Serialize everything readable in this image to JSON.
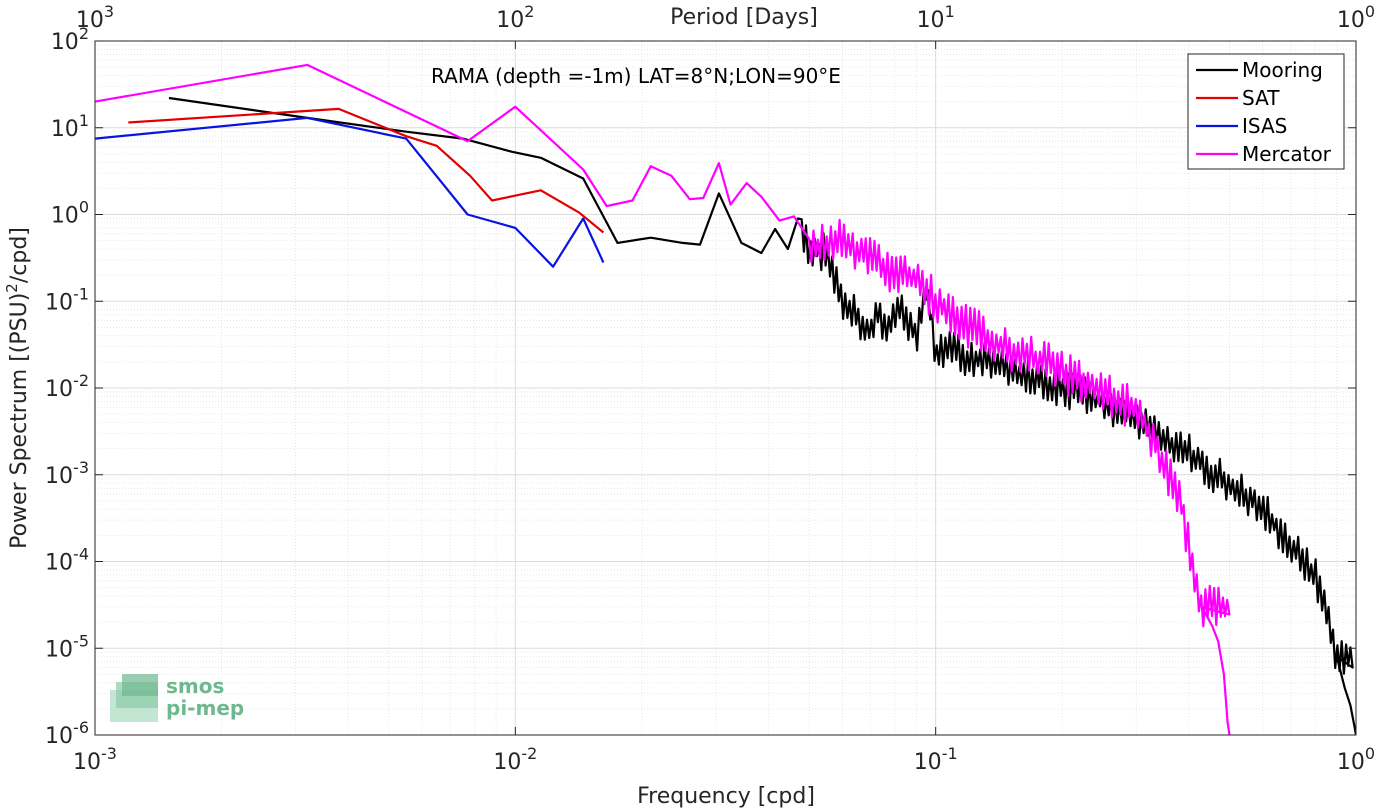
{
  "chart_data": {
    "type": "line",
    "annotation": "RAMA (depth =-1m) LAT=8°N;LON=90°E",
    "xlabel": "Frequency [cpd]",
    "ylabel": "Power Spectrum [(PSU)²/cpd]",
    "ylabel_main": "Power Spectrum [(PSU)",
    "ylabel_sup": "2",
    "ylabel_end": "/cpd]",
    "top_xlabel": "Period [Days]",
    "xscale": "log",
    "yscale": "log",
    "xlim": [
      0.001,
      1
    ],
    "ylim": [
      1e-06,
      100
    ],
    "grid": true,
    "legend_position": "top-right",
    "x_ticks": [
      {
        "value": 0.001,
        "base": "10",
        "exp": "-3"
      },
      {
        "value": 0.01,
        "base": "10",
        "exp": "-2"
      },
      {
        "value": 0.1,
        "base": "10",
        "exp": "-1"
      },
      {
        "value": 1,
        "base": "10",
        "exp": "0"
      }
    ],
    "y_ticks": [
      {
        "value": 1e-06,
        "base": "10",
        "exp": "-6"
      },
      {
        "value": 1e-05,
        "base": "10",
        "exp": "-5"
      },
      {
        "value": 0.0001,
        "base": "10",
        "exp": "-4"
      },
      {
        "value": 0.001,
        "base": "10",
        "exp": "-3"
      },
      {
        "value": 0.01,
        "base": "10",
        "exp": "-2"
      },
      {
        "value": 0.1,
        "base": "10",
        "exp": "-1"
      },
      {
        "value": 1,
        "base": "10",
        "exp": "0"
      },
      {
        "value": 10,
        "base": "10",
        "exp": "1"
      },
      {
        "value": 100,
        "base": "10",
        "exp": "2"
      }
    ],
    "top_ticks": [
      {
        "freq": 0.001,
        "base": "10",
        "exp": "3"
      },
      {
        "freq": 0.01,
        "base": "10",
        "exp": "2"
      },
      {
        "freq": 0.1,
        "base": "10",
        "exp": "1"
      },
      {
        "freq": 1,
        "base": "10",
        "exp": "0"
      }
    ],
    "series": [
      {
        "name": "Mooring",
        "color": "#000000",
        "noise": {
          "xmin": 0.048,
          "xmax": 0.99,
          "step": 1.012,
          "amp": 0.22,
          "seed": 7
        },
        "tail": [
          [
            0.9,
            8e-06
          ],
          [
            0.94,
            3.5e-06
          ],
          [
            0.97,
            2.2e-06
          ],
          [
            0.99,
            1.3e-06
          ],
          [
            1.0,
            1e-06
          ]
        ],
        "points": [
          [
            0.0015,
            22
          ],
          [
            0.0032,
            13
          ],
          [
            0.0055,
            9
          ],
          [
            0.0075,
            7.5
          ],
          [
            0.0098,
            5.3
          ],
          [
            0.0115,
            4.5
          ],
          [
            0.0145,
            2.6
          ],
          [
            0.0175,
            0.47
          ],
          [
            0.021,
            0.54
          ],
          [
            0.025,
            0.47
          ],
          [
            0.0275,
            0.45
          ],
          [
            0.0305,
            1.75
          ],
          [
            0.0345,
            0.47
          ],
          [
            0.0385,
            0.36
          ],
          [
            0.0415,
            0.68
          ],
          [
            0.0445,
            0.4
          ],
          [
            0.047,
            0.9
          ],
          [
            0.05,
            0.42
          ],
          [
            0.055,
            0.36
          ],
          [
            0.06,
            0.1
          ],
          [
            0.065,
            0.07
          ],
          [
            0.069,
            0.043
          ],
          [
            0.073,
            0.07
          ],
          [
            0.077,
            0.048
          ],
          [
            0.081,
            0.085
          ],
          [
            0.086,
            0.06
          ],
          [
            0.09,
            0.04
          ],
          [
            0.095,
            0.15
          ],
          [
            0.1,
            0.025
          ],
          [
            0.11,
            0.032
          ],
          [
            0.12,
            0.02
          ],
          [
            0.13,
            0.022
          ],
          [
            0.15,
            0.016
          ],
          [
            0.17,
            0.013
          ],
          [
            0.2,
            0.01
          ],
          [
            0.25,
            0.007
          ],
          [
            0.3,
            0.0042
          ],
          [
            0.35,
            0.0025
          ],
          [
            0.4,
            0.0018
          ],
          [
            0.45,
            0.0011
          ],
          [
            0.5,
            0.0008
          ],
          [
            0.6,
            0.0004
          ],
          [
            0.7,
            0.00015
          ],
          [
            0.8,
            7e-05
          ],
          [
            0.9,
            8e-06
          ]
        ]
      },
      {
        "name": "SAT",
        "color": "#e30000",
        "points": [
          [
            0.0012,
            11.5
          ],
          [
            0.0038,
            16.5
          ],
          [
            0.0055,
            8
          ],
          [
            0.0065,
            6.2
          ],
          [
            0.0078,
            2.8
          ],
          [
            0.0088,
            1.45
          ],
          [
            0.0115,
            1.9
          ],
          [
            0.0142,
            1.05
          ],
          [
            0.0162,
            0.62
          ]
        ]
      },
      {
        "name": "ISAS",
        "color": "#0a14e0",
        "points": [
          [
            0.001,
            7.5
          ],
          [
            0.0032,
            13
          ],
          [
            0.0055,
            7.5
          ],
          [
            0.0077,
            1.0
          ],
          [
            0.01,
            0.7
          ],
          [
            0.0123,
            0.25
          ],
          [
            0.0145,
            0.9
          ],
          [
            0.0162,
            0.28
          ]
        ]
      },
      {
        "name": "Mercator",
        "color": "#ff00ff",
        "noise": {
          "xmin": 0.05,
          "xmax": 0.5,
          "step": 1.012,
          "amp": 0.25,
          "seed": 13
        },
        "tail": [
          [
            0.43,
            3e-05
          ],
          [
            0.455,
            1.8e-05
          ],
          [
            0.47,
            1.2e-05
          ],
          [
            0.485,
            5e-06
          ],
          [
            0.495,
            1.4e-06
          ],
          [
            0.5,
            1e-06
          ]
        ],
        "points": [
          [
            0.001,
            20
          ],
          [
            0.0032,
            53
          ],
          [
            0.0077,
            7
          ],
          [
            0.01,
            17.5
          ],
          [
            0.0145,
            3.3
          ],
          [
            0.0165,
            1.25
          ],
          [
            0.019,
            1.45
          ],
          [
            0.021,
            3.6
          ],
          [
            0.0235,
            2.8
          ],
          [
            0.026,
            1.5
          ],
          [
            0.028,
            1.55
          ],
          [
            0.0305,
            3.9
          ],
          [
            0.0325,
            1.3
          ],
          [
            0.0355,
            2.3
          ],
          [
            0.0385,
            1.6
          ],
          [
            0.0425,
            0.85
          ],
          [
            0.046,
            0.95
          ],
          [
            0.05,
            0.4
          ],
          [
            0.06,
            0.5
          ],
          [
            0.07,
            0.3
          ],
          [
            0.08,
            0.2
          ],
          [
            0.09,
            0.18
          ],
          [
            0.1,
            0.1
          ],
          [
            0.12,
            0.05
          ],
          [
            0.15,
            0.028
          ],
          [
            0.18,
            0.02
          ],
          [
            0.22,
            0.012
          ],
          [
            0.26,
            0.008
          ],
          [
            0.3,
            0.0055
          ],
          [
            0.33,
            0.0025
          ],
          [
            0.35,
            0.0012
          ],
          [
            0.38,
            0.0006
          ],
          [
            0.4,
            0.00015
          ],
          [
            0.43,
            3e-05
          ]
        ]
      }
    ]
  },
  "watermark": {
    "line1": "smos",
    "line2": "pi-mep",
    "icon": "smos-pi-mep-logo"
  }
}
